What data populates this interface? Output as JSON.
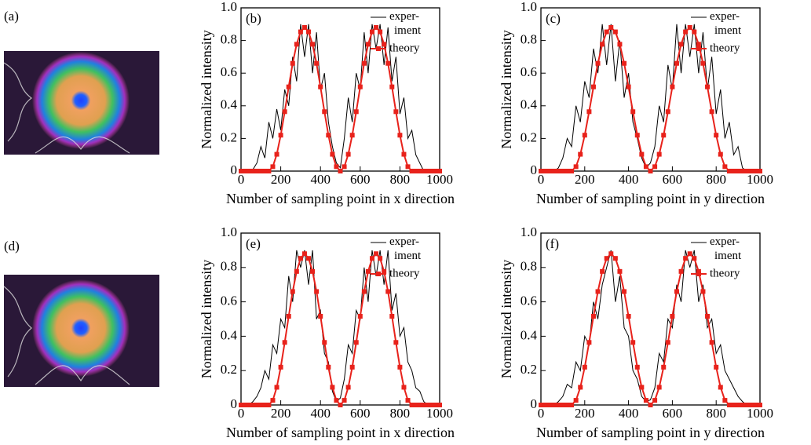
{
  "images": [
    {
      "label": "(a)"
    },
    {
      "label": "(d)"
    }
  ],
  "chart_data": [
    {
      "type": "line",
      "label": "(b)",
      "x_label": "Number of sampling point in x direction",
      "y_label": "Normalized intensity",
      "xlim": [
        0,
        1000
      ],
      "ylim": [
        0,
        1
      ],
      "xticks": [
        0,
        200,
        400,
        600,
        800,
        1000
      ],
      "yticks": [
        0,
        0.2,
        0.4,
        0.6,
        0.8,
        {
          "value": 1,
          "label": "1.0"
        }
      ],
      "legend": "top-right",
      "x": [
        0,
        20,
        40,
        60,
        80,
        100,
        120,
        140,
        160,
        180,
        200,
        220,
        240,
        260,
        280,
        300,
        320,
        340,
        360,
        380,
        400,
        420,
        440,
        460,
        480,
        500,
        520,
        540,
        560,
        580,
        600,
        620,
        640,
        660,
        680,
        700,
        720,
        740,
        760,
        780,
        800,
        820,
        840,
        860,
        880,
        900,
        920,
        940,
        960,
        980,
        1000
      ],
      "series": [
        {
          "name": "exper- iment",
          "color": "#000000",
          "marker": "none",
          "values": [
            0,
            0,
            0,
            0.01,
            0.05,
            0.15,
            0.08,
            0.3,
            0.2,
            0.38,
            0.25,
            0.5,
            0.4,
            0.7,
            0.55,
            0.9,
            0.7,
            0.9,
            0.6,
            0.85,
            0.5,
            0.6,
            0.3,
            0.15,
            0.05,
            0.02,
            0.2,
            0.45,
            0.3,
            0.6,
            0.5,
            0.85,
            0.6,
            0.9,
            0.75,
            0.9,
            0.65,
            0.88,
            0.55,
            0.7,
            0.35,
            0.45,
            0.2,
            0.25,
            0.1,
            0.05,
            0,
            0,
            0,
            0,
            0
          ]
        },
        {
          "name": "theory",
          "color": "#e8221b",
          "marker": "square",
          "values": [
            0,
            0,
            0,
            0,
            0,
            0,
            0,
            0,
            0.027,
            0.103,
            0.22,
            0.364,
            0.516,
            0.66,
            0.777,
            0.853,
            0.88,
            0.853,
            0.777,
            0.66,
            0.516,
            0.364,
            0.22,
            0.103,
            0.027,
            0,
            0.027,
            0.103,
            0.22,
            0.364,
            0.516,
            0.66,
            0.777,
            0.853,
            0.88,
            0.853,
            0.777,
            0.66,
            0.516,
            0.364,
            0.22,
            0.103,
            0.027,
            0,
            0,
            0,
            0,
            0,
            0,
            0,
            0
          ]
        }
      ]
    },
    {
      "type": "line",
      "label": "(c)",
      "x_label": "Number of sampling point in y direction",
      "y_label": "Normalized intensity",
      "xlim": [
        0,
        1000
      ],
      "ylim": [
        0,
        1
      ],
      "xticks": [
        0,
        200,
        400,
        600,
        800,
        1000
      ],
      "yticks": [
        0,
        0.2,
        0.4,
        0.6,
        0.8,
        {
          "value": 1,
          "label": "1.0"
        }
      ],
      "legend": "top-right",
      "x": [
        0,
        20,
        40,
        60,
        80,
        100,
        120,
        140,
        160,
        180,
        200,
        220,
        240,
        260,
        280,
        300,
        320,
        340,
        360,
        380,
        400,
        420,
        440,
        460,
        480,
        500,
        520,
        540,
        560,
        580,
        600,
        620,
        640,
        660,
        680,
        700,
        720,
        740,
        760,
        780,
        800,
        820,
        840,
        860,
        880,
        900,
        920,
        940,
        960,
        980,
        1000
      ],
      "series": [
        {
          "name": "exper- iment",
          "color": "#000000",
          "marker": "none",
          "values": [
            0,
            0,
            0,
            0,
            0.02,
            0.08,
            0.2,
            0.15,
            0.4,
            0.3,
            0.55,
            0.45,
            0.75,
            0.6,
            0.9,
            0.65,
            0.9,
            0.55,
            0.8,
            0.45,
            0.6,
            0.3,
            0.2,
            0.08,
            0.02,
            0.05,
            0.15,
            0.4,
            0.3,
            0.65,
            0.5,
            0.9,
            0.6,
            0.9,
            0.7,
            0.9,
            0.6,
            0.85,
            0.5,
            0.7,
            0.35,
            0.5,
            0.2,
            0.3,
            0.1,
            0.15,
            0.02,
            0,
            0,
            0,
            0
          ]
        },
        {
          "name": "theory",
          "color": "#e8221b",
          "marker": "square",
          "values": [
            0,
            0,
            0,
            0,
            0,
            0,
            0,
            0,
            0.027,
            0.103,
            0.22,
            0.364,
            0.516,
            0.66,
            0.777,
            0.853,
            0.88,
            0.853,
            0.777,
            0.66,
            0.516,
            0.364,
            0.22,
            0.103,
            0.027,
            0,
            0.027,
            0.103,
            0.22,
            0.364,
            0.516,
            0.66,
            0.777,
            0.853,
            0.88,
            0.853,
            0.777,
            0.66,
            0.516,
            0.364,
            0.22,
            0.103,
            0.027,
            0,
            0,
            0,
            0,
            0,
            0,
            0,
            0
          ]
        }
      ]
    },
    {
      "type": "line",
      "label": "(e)",
      "x_label": "Number of sampling point in x direction",
      "y_label": "Normalized intensity",
      "xlim": [
        0,
        1000
      ],
      "ylim": [
        0,
        1
      ],
      "xticks": [
        0,
        200,
        400,
        600,
        800,
        1000
      ],
      "yticks": [
        0,
        0.2,
        0.4,
        0.6,
        0.8,
        {
          "value": 1,
          "label": "1.0"
        }
      ],
      "legend": "top-right",
      "x": [
        0,
        20,
        40,
        60,
        80,
        100,
        120,
        140,
        160,
        180,
        200,
        220,
        240,
        260,
        280,
        300,
        320,
        340,
        360,
        380,
        400,
        420,
        440,
        460,
        480,
        500,
        520,
        540,
        560,
        580,
        600,
        620,
        640,
        660,
        680,
        700,
        720,
        740,
        760,
        780,
        800,
        820,
        840,
        860,
        880,
        900,
        920,
        940,
        960,
        980,
        1000
      ],
      "series": [
        {
          "name": "exper- iment",
          "color": "#000000",
          "marker": "none",
          "values": [
            0,
            0,
            0,
            0.02,
            0.05,
            0.1,
            0.2,
            0.15,
            0.35,
            0.3,
            0.5,
            0.45,
            0.75,
            0.6,
            0.9,
            0.8,
            0.9,
            0.7,
            0.9,
            0.5,
            0.55,
            0.3,
            0.25,
            0.08,
            0.02,
            0.04,
            0.15,
            0.35,
            0.3,
            0.55,
            0.5,
            0.8,
            0.6,
            0.9,
            0.75,
            0.9,
            0.7,
            0.9,
            0.55,
            0.65,
            0.4,
            0.45,
            0.25,
            0.2,
            0.1,
            0.08,
            0.02,
            0,
            0,
            0,
            0
          ]
        },
        {
          "name": "theory",
          "color": "#e8221b",
          "marker": "square",
          "values": [
            0,
            0,
            0,
            0,
            0,
            0,
            0,
            0,
            0.027,
            0.103,
            0.22,
            0.364,
            0.516,
            0.66,
            0.777,
            0.853,
            0.88,
            0.853,
            0.777,
            0.66,
            0.516,
            0.364,
            0.22,
            0.103,
            0.027,
            0,
            0.027,
            0.103,
            0.22,
            0.364,
            0.516,
            0.66,
            0.777,
            0.853,
            0.88,
            0.853,
            0.777,
            0.66,
            0.516,
            0.364,
            0.22,
            0.103,
            0.027,
            0,
            0,
            0,
            0,
            0,
            0,
            0,
            0
          ]
        }
      ]
    },
    {
      "type": "line",
      "label": "(f)",
      "x_label": "Number of sampling point in y direction",
      "y_label": "Normalized intensity",
      "xlim": [
        0,
        1000
      ],
      "ylim": [
        0,
        1
      ],
      "xticks": [
        0,
        200,
        400,
        600,
        800,
        1000
      ],
      "yticks": [
        0,
        0.2,
        0.4,
        0.6,
        0.8,
        {
          "value": 1,
          "label": "1.0"
        }
      ],
      "legend": "top-right",
      "x": [
        0,
        20,
        40,
        60,
        80,
        100,
        120,
        140,
        160,
        180,
        200,
        220,
        240,
        260,
        280,
        300,
        320,
        340,
        360,
        380,
        400,
        420,
        440,
        460,
        480,
        500,
        520,
        540,
        560,
        580,
        600,
        620,
        640,
        660,
        680,
        700,
        720,
        740,
        760,
        780,
        800,
        820,
        840,
        860,
        880,
        900,
        920,
        940,
        960,
        980,
        1000
      ],
      "series": [
        {
          "name": "exper- iment",
          "color": "#000000",
          "marker": "none",
          "values": [
            0,
            0,
            0,
            0,
            0.02,
            0.05,
            0.12,
            0.1,
            0.25,
            0.2,
            0.4,
            0.35,
            0.6,
            0.5,
            0.7,
            0.8,
            0.9,
            0.6,
            0.75,
            0.45,
            0.4,
            0.2,
            0.15,
            0.05,
            0.02,
            0.03,
            0.1,
            0.3,
            0.25,
            0.5,
            0.45,
            0.7,
            0.6,
            0.9,
            0.8,
            0.9,
            0.6,
            0.7,
            0.45,
            0.5,
            0.3,
            0.35,
            0.2,
            0.15,
            0.1,
            0.05,
            0.02,
            0,
            0,
            0,
            0
          ]
        },
        {
          "name": "theory",
          "color": "#e8221b",
          "marker": "square",
          "values": [
            0,
            0,
            0,
            0,
            0,
            0,
            0,
            0,
            0.027,
            0.103,
            0.22,
            0.364,
            0.516,
            0.66,
            0.777,
            0.853,
            0.88,
            0.853,
            0.777,
            0.66,
            0.516,
            0.364,
            0.22,
            0.103,
            0.027,
            0,
            0.027,
            0.103,
            0.22,
            0.364,
            0.516,
            0.66,
            0.777,
            0.853,
            0.88,
            0.853,
            0.777,
            0.66,
            0.516,
            0.364,
            0.22,
            0.103,
            0.027,
            0,
            0,
            0,
            0,
            0,
            0,
            0,
            0
          ]
        }
      ]
    }
  ]
}
